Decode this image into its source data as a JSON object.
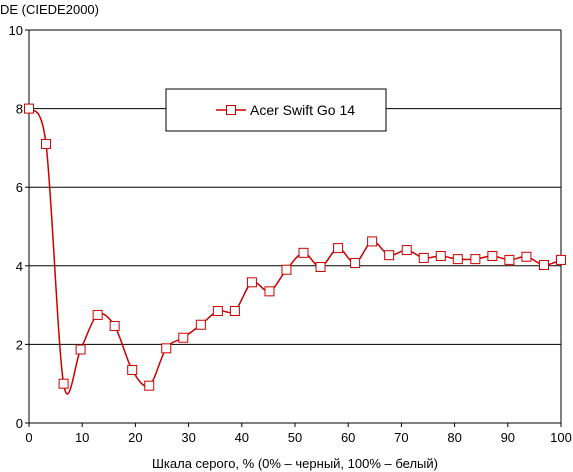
{
  "chart_data": {
    "type": "line",
    "title": "",
    "ylabel": "DE (CIEDE2000)",
    "xlabel": "Шкала серого, % (0% – черный, 100% – белый)",
    "xlim": [
      0,
      100
    ],
    "ylim": [
      0,
      10
    ],
    "x_ticks": [
      0,
      10,
      20,
      30,
      40,
      50,
      60,
      70,
      80,
      90,
      100
    ],
    "y_ticks": [
      0,
      2,
      4,
      6,
      8,
      10
    ],
    "grid": {
      "horizontal": true,
      "vertical": false
    },
    "legend_position": "top-center",
    "colors": {
      "series": "#cc0000",
      "marker_fill": "#ffffff",
      "grid": "#000000"
    },
    "series": [
      {
        "name": "Acer Swift Go 14",
        "x": [
          0,
          3.2,
          6.5,
          9.7,
          12.9,
          16.1,
          19.4,
          22.6,
          25.8,
          29.0,
          32.3,
          35.5,
          38.7,
          41.9,
          45.2,
          48.4,
          51.6,
          54.8,
          58.1,
          61.3,
          64.5,
          67.7,
          71.0,
          74.2,
          77.4,
          80.6,
          83.9,
          87.1,
          90.3,
          93.5,
          96.8,
          100
        ],
        "values": [
          8.0,
          7.1,
          1.0,
          1.87,
          2.75,
          2.47,
          1.35,
          0.95,
          1.9,
          2.17,
          2.5,
          2.85,
          2.85,
          3.58,
          3.35,
          3.9,
          4.33,
          3.97,
          4.45,
          4.07,
          4.62,
          4.27,
          4.4,
          4.2,
          4.25,
          4.17,
          4.17,
          4.25,
          4.15,
          4.23,
          4.02,
          4.15
        ]
      }
    ]
  }
}
